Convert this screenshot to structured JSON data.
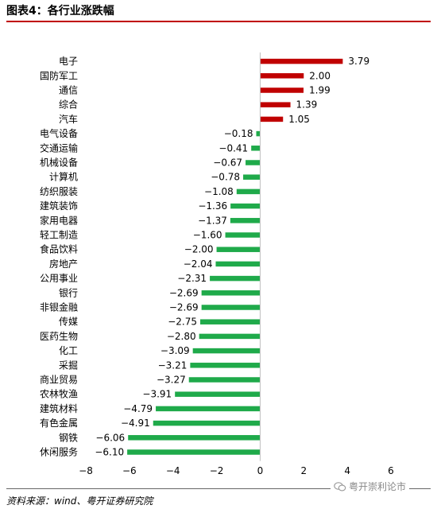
{
  "figure": {
    "title": "图表4：各行业涨跌幅",
    "source": "资料来源：wind、粤开证券研究院",
    "watermark": "粤开崇利论市"
  },
  "colors": {
    "positive": "#c00000",
    "negative": "#1faa4a",
    "title_rule": "#c00000"
  },
  "chart_data": {
    "type": "bar",
    "orientation": "horizontal",
    "title": "",
    "xlabel": "",
    "ylabel": "",
    "xlim": [
      -8,
      6
    ],
    "xticks": [
      -8,
      -6,
      -4,
      -2,
      0,
      2,
      4,
      6
    ],
    "xtick_labels": [
      "−8",
      "−6",
      "−4",
      "−2",
      "0",
      "2",
      "4",
      "6"
    ],
    "grid": false,
    "categories": [
      "电子",
      "国防军工",
      "通信",
      "综合",
      "汽车",
      "电气设备",
      "交通运输",
      "机械设备",
      "计算机",
      "纺织服装",
      "建筑装饰",
      "家用电器",
      "轻工制造",
      "食品饮料",
      "房地产",
      "公用事业",
      "银行",
      "非银金融",
      "传媒",
      "医药生物",
      "化工",
      "采掘",
      "商业贸易",
      "农林牧渔",
      "建筑材料",
      "有色金属",
      "钢铁",
      "休闲服务"
    ],
    "values": [
      3.79,
      2.0,
      1.99,
      1.39,
      1.05,
      -0.18,
      -0.41,
      -0.67,
      -0.78,
      -1.08,
      -1.36,
      -1.37,
      -1.6,
      -2.0,
      -2.04,
      -2.31,
      -2.69,
      -2.69,
      -2.75,
      -2.8,
      -3.09,
      -3.21,
      -3.27,
      -3.91,
      -4.79,
      -4.91,
      -6.06,
      -6.1
    ],
    "value_labels": [
      "3.79",
      "2.00",
      "1.99",
      "1.39",
      "1.05",
      "−0.18",
      "−0.41",
      "−0.67",
      "−0.78",
      "−1.08",
      "−1.36",
      "−1.37",
      "−1.60",
      "−2.00",
      "−2.04",
      "−2.31",
      "−2.69",
      "−2.69",
      "−2.75",
      "−2.80",
      "−3.09",
      "−3.21",
      "−3.27",
      "−3.91",
      "−4.79",
      "−4.91",
      "−6.06",
      "−6.10"
    ]
  }
}
